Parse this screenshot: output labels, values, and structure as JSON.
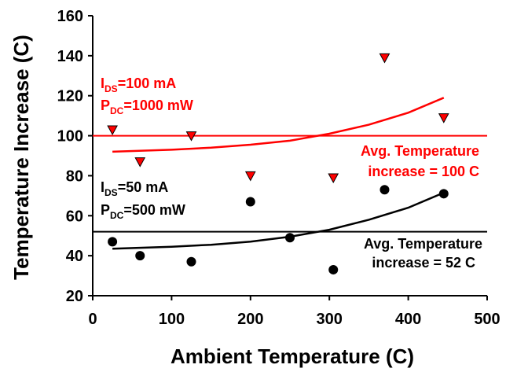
{
  "chart_data": {
    "type": "scatter",
    "title": "",
    "xlabel": "Ambient Temperature (C)",
    "ylabel": "Temperature Increase (C)",
    "xlim": [
      0,
      500
    ],
    "ylim": [
      20,
      160
    ],
    "x_ticks": [
      "0",
      "100",
      "200",
      "300",
      "400",
      "500"
    ],
    "y_ticks": [
      "20",
      "40",
      "60",
      "80",
      "100",
      "120",
      "140",
      "160"
    ],
    "x_tick_values": [
      0,
      100,
      200,
      300,
      400,
      500
    ],
    "y_tick_values": [
      20,
      40,
      60,
      80,
      100,
      120,
      140,
      160
    ],
    "grid": false,
    "series": [
      {
        "color": "#ff0000",
        "marker": "triangle-down",
        "points": [
          {
            "x": 25,
            "y": 103
          },
          {
            "x": 60,
            "y": 87
          },
          {
            "x": 125,
            "y": 100
          },
          {
            "x": 200,
            "y": 80
          },
          {
            "x": 305,
            "y": 79
          },
          {
            "x": 370,
            "y": 139
          },
          {
            "x": 445,
            "y": 109
          }
        ],
        "trend": [
          {
            "x": 25,
            "y": 92
          },
          {
            "x": 100,
            "y": 93
          },
          {
            "x": 150,
            "y": 94
          },
          {
            "x": 200,
            "y": 95.5
          },
          {
            "x": 250,
            "y": 97.5
          },
          {
            "x": 300,
            "y": 101
          },
          {
            "x": 350,
            "y": 105.5
          },
          {
            "x": 400,
            "y": 111.5
          },
          {
            "x": 445,
            "y": 119
          }
        ],
        "average": 100
      },
      {
        "color": "#000000",
        "marker": "circle",
        "points": [
          {
            "x": 25,
            "y": 47
          },
          {
            "x": 60,
            "y": 40
          },
          {
            "x": 125,
            "y": 37
          },
          {
            "x": 200,
            "y": 67
          },
          {
            "x": 250,
            "y": 49
          },
          {
            "x": 305,
            "y": 33
          },
          {
            "x": 370,
            "y": 73
          },
          {
            "x": 445,
            "y": 71
          }
        ],
        "trend": [
          {
            "x": 25,
            "y": 43.5
          },
          {
            "x": 100,
            "y": 44.5
          },
          {
            "x": 150,
            "y": 45.5
          },
          {
            "x": 200,
            "y": 47
          },
          {
            "x": 250,
            "y": 49.5
          },
          {
            "x": 300,
            "y": 53
          },
          {
            "x": 350,
            "y": 58
          },
          {
            "x": 400,
            "y": 64
          },
          {
            "x": 445,
            "y": 71.5
          }
        ],
        "average": 52
      }
    ],
    "annotations": {
      "red_condition": {
        "line1": {
          "label": "I",
          "sub": "DS",
          "value": "=100 mA"
        },
        "line2": {
          "label": "P",
          "sub": "DC",
          "value": "=1000 mW"
        },
        "color": "#ff0000"
      },
      "black_condition": {
        "line1": {
          "label": "I",
          "sub": "DS",
          "value": "=50 mA"
        },
        "line2": {
          "label": "P",
          "sub": "DC",
          "value": "=500 mW"
        },
        "color": "#000000"
      },
      "red_average": {
        "line1": "Avg. Temperature",
        "line2": "increase = 100 C",
        "color": "#ff0000"
      },
      "black_average": {
        "line1": "Avg. Temperature",
        "line2": "increase = 52 C",
        "color": "#000000"
      }
    }
  }
}
